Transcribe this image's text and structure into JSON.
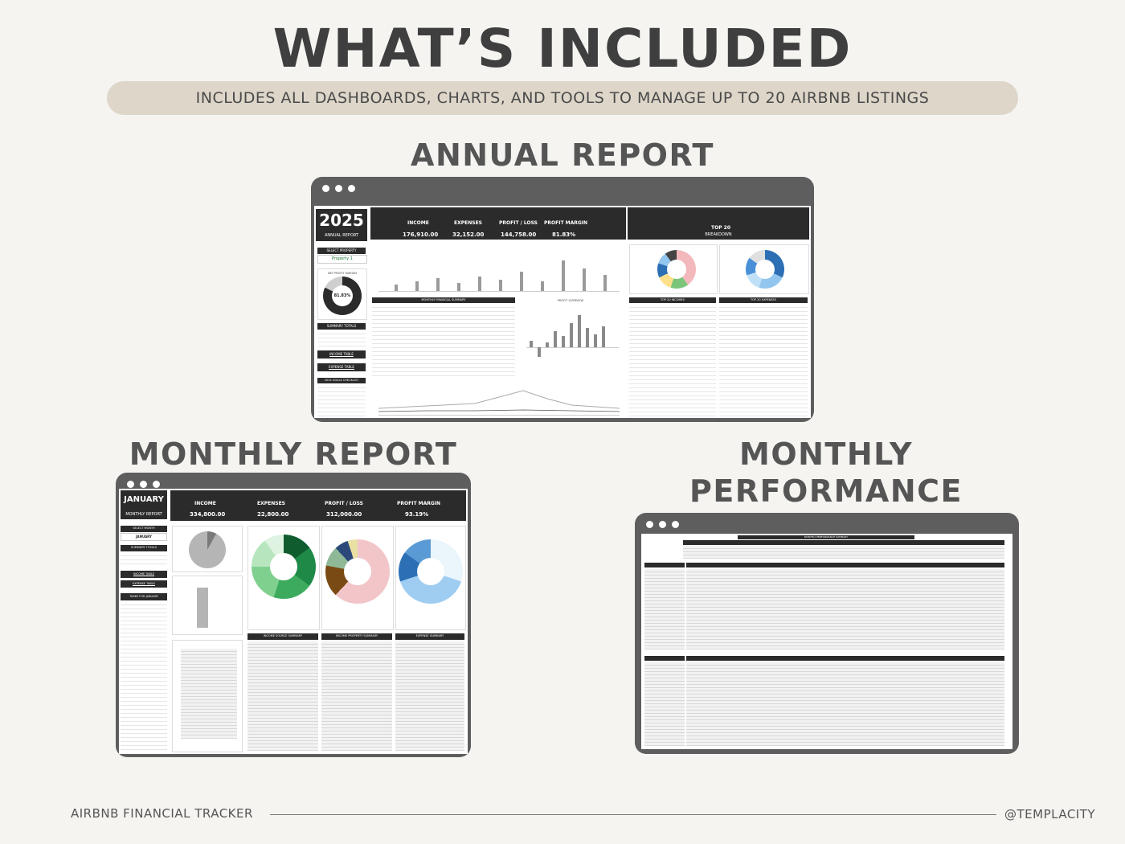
{
  "header": {
    "title": "WHAT’S INCLUDED",
    "banner": "INCLUDES ALL DASHBOARDS, CHARTS, AND TOOLS TO MANAGE UP TO 20 AIRBNB LISTINGS"
  },
  "sections": {
    "annual": "ANNUAL REPORT",
    "monthly": "MONTHLY REPORT",
    "performance": "MONTHLY PERFORMANCE SUMMARY"
  },
  "annual_report": {
    "year": "2025",
    "subtitle": "ANNUAL REPORT",
    "select_property": "SELECT PROPERTY",
    "property": "Property 1",
    "net_profit_margin": "NET PROFIT MARGIN",
    "margin_value": "81.83%",
    "summary_totals": "SUMMARY TOTALS",
    "income_table": "INCOME TABLE",
    "expense_table": "EXPENSE TABLE",
    "goals_checklist": "2025 GOALS CHECKLIST",
    "kpis": [
      {
        "label": "INCOME",
        "value": "176,910.00"
      },
      {
        "label": "EXPENSES",
        "value": "32,152.00"
      },
      {
        "label": "PROFIT / LOSS",
        "value": "144,758.00"
      },
      {
        "label": "PROFIT MARGIN",
        "value": "81.83%"
      }
    ],
    "top20_label": "TOP 20",
    "top20_sub": "BREAKDOWN",
    "monthly_summary_title": "MONTHLY FINANCIAL SUMMARY",
    "profit_overview_title": "PROFIT OVERVIEW",
    "top_incomes_title": "TOP 20 INCOMES",
    "top_expenses_title": "TOP 20 EXPENSES"
  },
  "monthly_report": {
    "month": "JANUARY",
    "subtitle": "MONTHLY REPORT",
    "select_month": "SELECT MONTH",
    "selected_month": "JANUARY",
    "summary_totals": "SUMMARY TOTALS",
    "income_table": "INCOME TABLE",
    "expense_table": "EXPENSE TABLE",
    "tasks": "TASKS FOR JANUARY",
    "kpis": [
      {
        "label": "INCOME",
        "value": "334,800.00"
      },
      {
        "label": "EXPENSES",
        "value": "22,800.00"
      },
      {
        "label": "PROFIT / LOSS",
        "value": "312,000.00"
      },
      {
        "label": "PROFIT MARGIN",
        "value": "93.19%"
      }
    ],
    "tables": [
      "INCOME SOURCE SUMMARY",
      "INCOME PROPERTY SUMMARY",
      "EXPENSE SUMMARY"
    ]
  },
  "performance_summary": {
    "title": "MONTHLY PERFORMANCE SUMMARY"
  },
  "footer": {
    "left": "AIRBNB FINANCIAL TRACKER",
    "right": "@TEMPLACITY"
  },
  "colors": {
    "background": "#f5f4f1",
    "banner": "#ddd6c9",
    "window": "#5e5e5e",
    "dashboard_dark": "#2b2b2b"
  }
}
